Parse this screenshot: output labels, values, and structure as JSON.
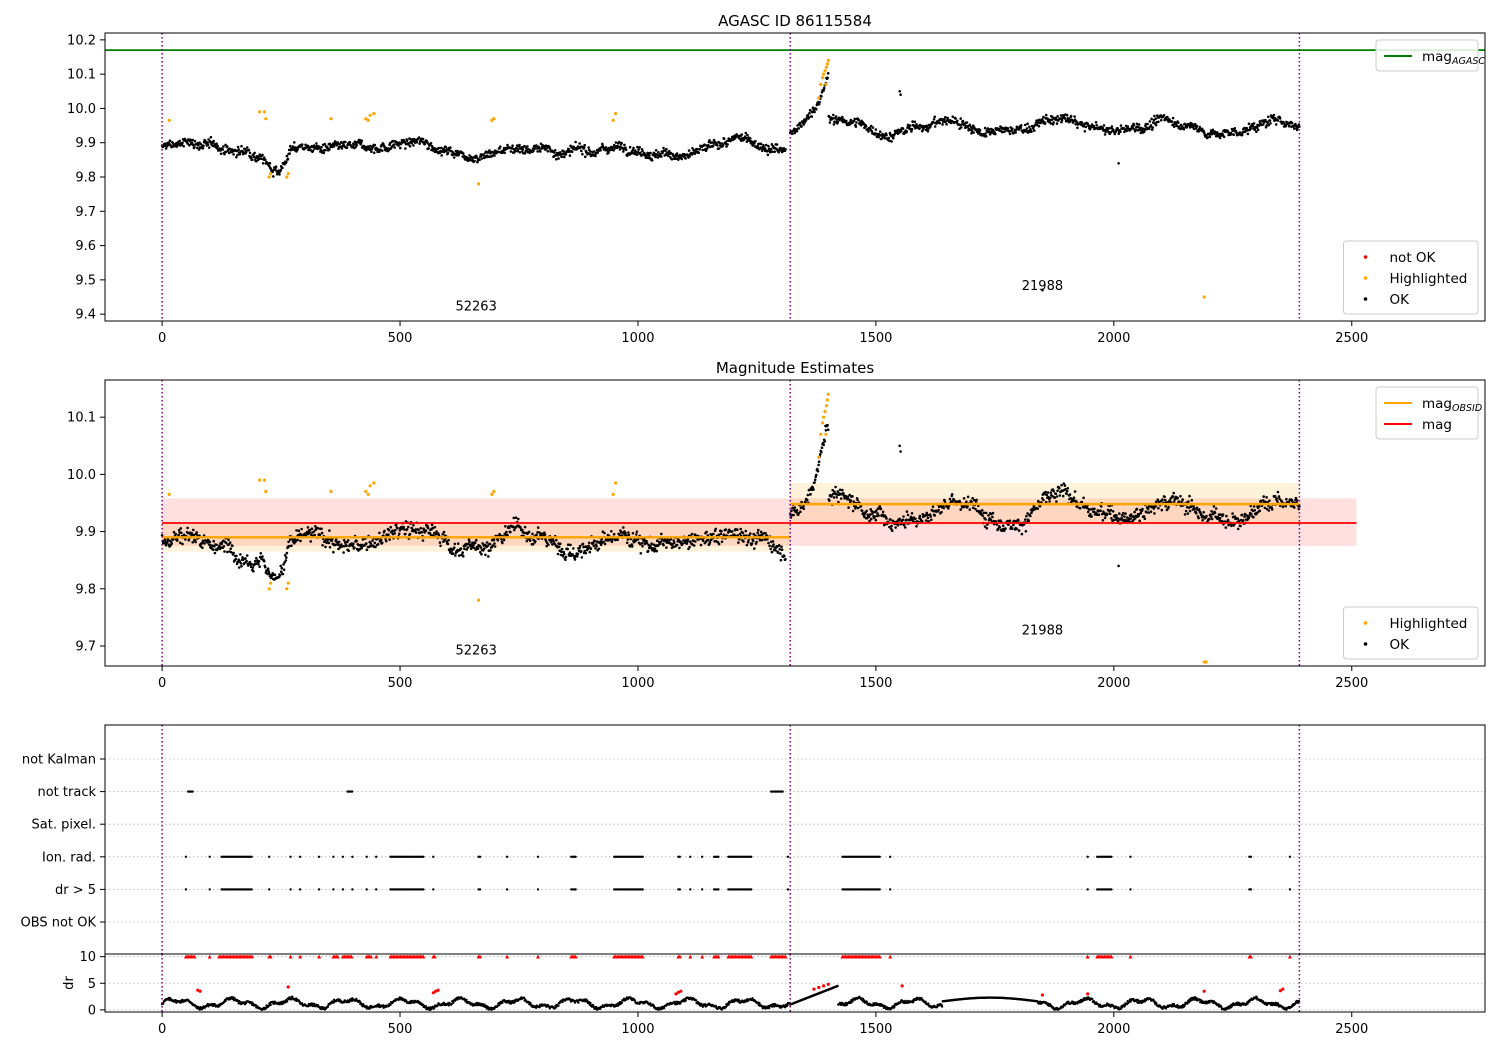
{
  "figure": {
    "background": "#ffffff"
  },
  "colors": {
    "ok": "#000000",
    "highlighted": "#ffa500",
    "not_ok": "#ff0000",
    "agasc": "#008000",
    "obsid": "#ffa500",
    "mag": "#ff0000",
    "boundary": "#800080",
    "grid": "#b0b0b0"
  },
  "chart_data": [
    {
      "type": "scatter",
      "title": "AGASC ID 86115584",
      "xlabel": "",
      "ylabel": "",
      "xlim": [
        -120,
        2780
      ],
      "ylim": [
        9.38,
        10.22
      ],
      "x_ticks": [
        0,
        500,
        1000,
        1500,
        2000,
        2500
      ],
      "y_ticks": [
        9.4,
        9.5,
        9.6,
        9.7,
        9.8,
        9.9,
        10.0,
        10.1,
        10.2
      ],
      "y_decimals": 1,
      "obsid_boundaries": [
        0,
        1320,
        2390
      ],
      "obsid_labels": [
        {
          "text": "52263",
          "x": 660,
          "y": 9.41
        },
        {
          "text": "21988",
          "x": 1850,
          "y": 9.47
        }
      ],
      "agasc_mag": 10.17,
      "legends": [
        {
          "position": "upper-right",
          "entries": [
            {
              "label": "mag",
              "sub": "AGASC",
              "kind": "line",
              "color": "#008000"
            }
          ]
        },
        {
          "position": "lower-right",
          "entries": [
            {
              "label": "not OK",
              "kind": "dot",
              "color": "#ff0000"
            },
            {
              "label": "Highlighted",
              "kind": "dot",
              "color": "#ffa500"
            },
            {
              "label": "OK",
              "kind": "dot",
              "color": "#000000"
            }
          ]
        }
      ],
      "highlighted_points": [
        [
          15,
          9.965
        ],
        [
          205,
          9.99
        ],
        [
          215,
          9.99
        ],
        [
          218,
          9.97
        ],
        [
          225,
          9.8
        ],
        [
          228,
          9.81
        ],
        [
          262,
          9.8
        ],
        [
          265,
          9.81
        ],
        [
          355,
          9.97
        ],
        [
          428,
          9.97
        ],
        [
          433,
          9.965
        ],
        [
          437,
          9.98
        ],
        [
          445,
          9.985
        ],
        [
          665,
          9.78
        ],
        [
          693,
          9.965
        ],
        [
          697,
          9.97
        ],
        [
          948,
          9.965
        ],
        [
          953,
          9.985
        ],
        [
          1380,
          10.03
        ],
        [
          1384,
          10.07
        ],
        [
          1388,
          10.09
        ],
        [
          1390,
          10.1
        ],
        [
          1393,
          10.11
        ],
        [
          1396,
          10.12
        ],
        [
          1398,
          10.13
        ],
        [
          1400,
          10.14
        ],
        [
          1395,
          10.07
        ],
        [
          2190,
          9.45
        ]
      ],
      "outlier_points": [
        [
          1850,
          9.47
        ]
      ],
      "ok_series": {
        "segments": [
          {
            "x0": 0,
            "x1": 1310,
            "n": 1100,
            "base": 9.885,
            "amp": 0.025,
            "noise": 0.02
          },
          {
            "x0": 1320,
            "x1": 2390,
            "n": 900,
            "base": 9.945,
            "amp": 0.035,
            "noise": 0.02
          }
        ],
        "dip": {
          "x0": 210,
          "x1": 270,
          "depth": 0.05
        },
        "rise": {
          "x0": 1330,
          "x1": 1400,
          "top": 10.08
        },
        "extra": [
          [
            1550,
            10.05
          ],
          [
            1552,
            10.04
          ],
          [
            2010,
            9.84
          ]
        ]
      }
    },
    {
      "type": "scatter",
      "title": "Magnitude Estimates",
      "xlabel": "",
      "ylabel": "",
      "xlim": [
        -120,
        2780
      ],
      "ylim": [
        9.665,
        10.165
      ],
      "x_ticks": [
        0,
        500,
        1000,
        1500,
        2000,
        2500
      ],
      "y_ticks": [
        9.7,
        9.8,
        9.9,
        10.0,
        10.1
      ],
      "y_decimals": 1,
      "obsid_boundaries": [
        0,
        1320,
        2390
      ],
      "obsid_labels": [
        {
          "text": "52263",
          "x": 660,
          "y": 9.685
        },
        {
          "text": "21988",
          "x": 1850,
          "y": 9.72
        }
      ],
      "mag_line": {
        "value": 9.915,
        "band": [
          9.875,
          9.958
        ],
        "x": [
          0,
          2510
        ]
      },
      "obsid_lines": [
        {
          "value": 9.89,
          "band": [
            9.865,
            9.915
          ],
          "x": [
            0,
            1320
          ]
        },
        {
          "value": 9.948,
          "band": [
            9.912,
            9.985
          ],
          "x": [
            1320,
            2390
          ]
        }
      ],
      "legends": [
        {
          "position": "upper-right",
          "entries": [
            {
              "label": "mag",
              "sub": "OBSID",
              "kind": "line",
              "color": "#ffa500"
            },
            {
              "label": "mag",
              "kind": "line",
              "color": "#ff0000"
            }
          ]
        },
        {
          "position": "lower-right",
          "entries": [
            {
              "label": "Highlighted",
              "kind": "dot",
              "color": "#ffa500"
            },
            {
              "label": "OK",
              "kind": "dot",
              "color": "#000000"
            }
          ]
        }
      ],
      "highlighted_points": [
        [
          15,
          9.965
        ],
        [
          205,
          9.99
        ],
        [
          215,
          9.99
        ],
        [
          218,
          9.97
        ],
        [
          225,
          9.8
        ],
        [
          228,
          9.81
        ],
        [
          262,
          9.8
        ],
        [
          265,
          9.81
        ],
        [
          355,
          9.97
        ],
        [
          428,
          9.97
        ],
        [
          433,
          9.965
        ],
        [
          437,
          9.98
        ],
        [
          445,
          9.985
        ],
        [
          665,
          9.78
        ],
        [
          693,
          9.965
        ],
        [
          697,
          9.97
        ],
        [
          948,
          9.965
        ],
        [
          953,
          9.985
        ],
        [
          1380,
          10.03
        ],
        [
          1384,
          10.07
        ],
        [
          1388,
          10.09
        ],
        [
          1390,
          10.1
        ],
        [
          1393,
          10.11
        ],
        [
          1396,
          10.12
        ],
        [
          1398,
          10.13
        ],
        [
          1400,
          10.14
        ],
        [
          1395,
          10.07
        ],
        [
          2190,
          9.672
        ],
        [
          2194,
          9.672
        ]
      ],
      "ok_series": {
        "segments": [
          {
            "x0": 0,
            "x1": 1310,
            "n": 1100,
            "base": 9.885,
            "amp": 0.025,
            "noise": 0.02
          },
          {
            "x0": 1320,
            "x1": 2390,
            "n": 900,
            "base": 9.945,
            "amp": 0.035,
            "noise": 0.02
          }
        ],
        "dip": {
          "x0": 210,
          "x1": 270,
          "depth": 0.05
        },
        "rise": {
          "x0": 1330,
          "x1": 1400,
          "top": 10.08
        },
        "extra": [
          [
            1550,
            10.05
          ],
          [
            1552,
            10.04
          ],
          [
            2010,
            9.84
          ]
        ]
      }
    },
    {
      "type": "scatter",
      "title": "",
      "xlabel": "",
      "ylabel": "",
      "xlim": [
        -120,
        2780
      ],
      "x_ticks": [
        0,
        500,
        1000,
        1500,
        2000,
        2500
      ],
      "obsid_boundaries": [
        0,
        1320,
        2390
      ],
      "categories": [
        "not Kalman",
        "not track",
        "Sat. pixel.",
        "Ion. rad.",
        "dr > 5",
        "OBS not OK"
      ],
      "flags": {
        "not track": [
          [
            55,
            65
          ],
          [
            390,
            400
          ],
          [
            1280,
            1305
          ]
        ],
        "Ion. rad.": [
          [
            50,
            50
          ],
          [
            100,
            100
          ],
          [
            125,
            190
          ],
          [
            225,
            225
          ],
          [
            270,
            270
          ],
          [
            290,
            290
          ],
          [
            330,
            330
          ],
          [
            360,
            360
          ],
          [
            380,
            380
          ],
          [
            400,
            400
          ],
          [
            430,
            430
          ],
          [
            450,
            450
          ],
          [
            480,
            550
          ],
          [
            570,
            570
          ],
          [
            665,
            670
          ],
          [
            725,
            725
          ],
          [
            790,
            790
          ],
          [
            860,
            870
          ],
          [
            950,
            1010
          ],
          [
            1085,
            1090
          ],
          [
            1110,
            1110
          ],
          [
            1135,
            1135
          ],
          [
            1160,
            1170
          ],
          [
            1190,
            1240
          ],
          [
            1315,
            1315
          ],
          [
            1430,
            1510
          ],
          [
            1530,
            1530
          ],
          [
            1945,
            1945
          ],
          [
            1965,
            1995
          ],
          [
            2035,
            2035
          ],
          [
            2285,
            2290
          ],
          [
            2370,
            2370
          ]
        ],
        "dr > 5": [
          [
            50,
            50
          ],
          [
            100,
            100
          ],
          [
            125,
            190
          ],
          [
            225,
            225
          ],
          [
            270,
            270
          ],
          [
            290,
            290
          ],
          [
            330,
            330
          ],
          [
            360,
            360
          ],
          [
            380,
            380
          ],
          [
            400,
            400
          ],
          [
            430,
            430
          ],
          [
            450,
            450
          ],
          [
            480,
            550
          ],
          [
            570,
            570
          ],
          [
            665,
            670
          ],
          [
            725,
            725
          ],
          [
            790,
            790
          ],
          [
            860,
            870
          ],
          [
            950,
            1010
          ],
          [
            1085,
            1090
          ],
          [
            1110,
            1110
          ],
          [
            1135,
            1135
          ],
          [
            1160,
            1170
          ],
          [
            1190,
            1240
          ],
          [
            1315,
            1315
          ],
          [
            1430,
            1510
          ],
          [
            1530,
            1530
          ],
          [
            1945,
            1945
          ],
          [
            1965,
            1995
          ],
          [
            2035,
            2035
          ],
          [
            2285,
            2290
          ],
          [
            2370,
            2370
          ]
        ]
      }
    },
    {
      "type": "scatter",
      "title": "",
      "xlabel": "",
      "ylabel": "dr",
      "xlim": [
        -120,
        2780
      ],
      "ylim": [
        -0.4,
        10.5
      ],
      "x_ticks": [
        0,
        500,
        1000,
        1500,
        2000,
        2500
      ],
      "y_ticks": [
        0,
        5,
        10
      ],
      "y_decimals": 0,
      "obsid_boundaries": [
        0,
        1320,
        2390
      ],
      "capped_value": 10,
      "capped_ranges": [
        [
          50,
          70
        ],
        [
          100,
          100
        ],
        [
          120,
          190
        ],
        [
          225,
          230
        ],
        [
          270,
          270
        ],
        [
          290,
          290
        ],
        [
          330,
          330
        ],
        [
          360,
          370
        ],
        [
          380,
          400
        ],
        [
          430,
          440
        ],
        [
          450,
          450
        ],
        [
          480,
          550
        ],
        [
          570,
          575
        ],
        [
          665,
          670
        ],
        [
          725,
          725
        ],
        [
          790,
          790
        ],
        [
          860,
          870
        ],
        [
          950,
          1010
        ],
        [
          1085,
          1090
        ],
        [
          1110,
          1110
        ],
        [
          1135,
          1135
        ],
        [
          1160,
          1170
        ],
        [
          1190,
          1240
        ],
        [
          1280,
          1310
        ],
        [
          1430,
          1510
        ],
        [
          1530,
          1530
        ],
        [
          1945,
          1945
        ],
        [
          1965,
          1995
        ],
        [
          2035,
          2035
        ],
        [
          2285,
          2290
        ],
        [
          2370,
          2370
        ]
      ],
      "red_points": [
        [
          75,
          3.7
        ],
        [
          80,
          3.5
        ],
        [
          265,
          4.3
        ],
        [
          570,
          3.2
        ],
        [
          575,
          3.5
        ],
        [
          580,
          3.7
        ],
        [
          1080,
          3.0
        ],
        [
          1085,
          3.3
        ],
        [
          1090,
          3.5
        ],
        [
          1370,
          3.9
        ],
        [
          1380,
          4.2
        ],
        [
          1390,
          4.5
        ],
        [
          1400,
          4.8
        ],
        [
          1555,
          4.5
        ],
        [
          1850,
          2.8
        ],
        [
          1945,
          3.0
        ],
        [
          2190,
          3.5
        ],
        [
          2350,
          3.6
        ],
        [
          2355,
          3.9
        ]
      ]
    }
  ]
}
